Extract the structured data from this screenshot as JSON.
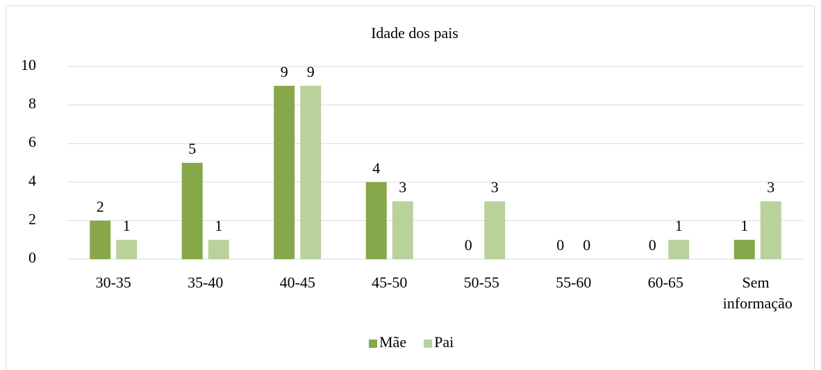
{
  "chart_data": {
    "type": "bar",
    "title": "Idade dos pais",
    "categories": [
      "30-35",
      "35-40",
      "40-45",
      "45-50",
      "50-55",
      "55-60",
      "60-65",
      "Sem informação"
    ],
    "series": [
      {
        "name": "Mãe",
        "color": "#86a84b",
        "values": [
          2,
          5,
          9,
          4,
          0,
          0,
          0,
          1
        ]
      },
      {
        "name": "Pai",
        "color": "#b9d19b",
        "values": [
          1,
          1,
          9,
          3,
          3,
          0,
          1,
          3
        ]
      }
    ],
    "ylim": [
      0,
      10
    ],
    "yticks": [
      0,
      2,
      4,
      6,
      8,
      10
    ],
    "grid": true,
    "legend": "bottom"
  }
}
